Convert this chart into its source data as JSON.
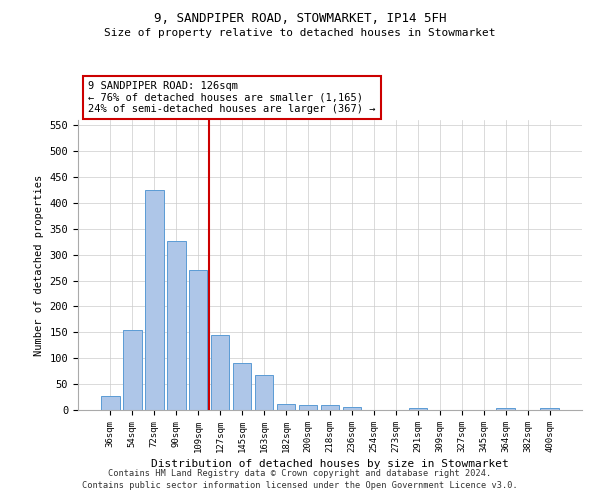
{
  "title1": "9, SANDPIPER ROAD, STOWMARKET, IP14 5FH",
  "title2": "Size of property relative to detached houses in Stowmarket",
  "xlabel": "Distribution of detached houses by size in Stowmarket",
  "ylabel": "Number of detached properties",
  "categories": [
    "36sqm",
    "54sqm",
    "72sqm",
    "90sqm",
    "109sqm",
    "127sqm",
    "145sqm",
    "163sqm",
    "182sqm",
    "200sqm",
    "218sqm",
    "236sqm",
    "254sqm",
    "273sqm",
    "291sqm",
    "309sqm",
    "327sqm",
    "345sqm",
    "364sqm",
    "382sqm",
    "400sqm"
  ],
  "values": [
    27,
    155,
    425,
    327,
    270,
    145,
    90,
    68,
    12,
    9,
    10,
    5,
    0,
    0,
    4,
    0,
    0,
    0,
    3,
    0,
    4
  ],
  "bar_color": "#aec6e8",
  "bar_edge_color": "#5b9bd5",
  "red_line_x": 4.5,
  "annotation_line1": "9 SANDPIPER ROAD: 126sqm",
  "annotation_line2": "← 76% of detached houses are smaller (1,165)",
  "annotation_line3": "24% of semi-detached houses are larger (367) →",
  "red_line_color": "#cc0000",
  "box_edge_color": "#cc0000",
  "ylim": [
    0,
    560
  ],
  "yticks": [
    0,
    50,
    100,
    150,
    200,
    250,
    300,
    350,
    400,
    450,
    500,
    550
  ],
  "footer1": "Contains HM Land Registry data © Crown copyright and database right 2024.",
  "footer2": "Contains public sector information licensed under the Open Government Licence v3.0.",
  "bg_color": "#ffffff",
  "grid_color": "#cccccc"
}
